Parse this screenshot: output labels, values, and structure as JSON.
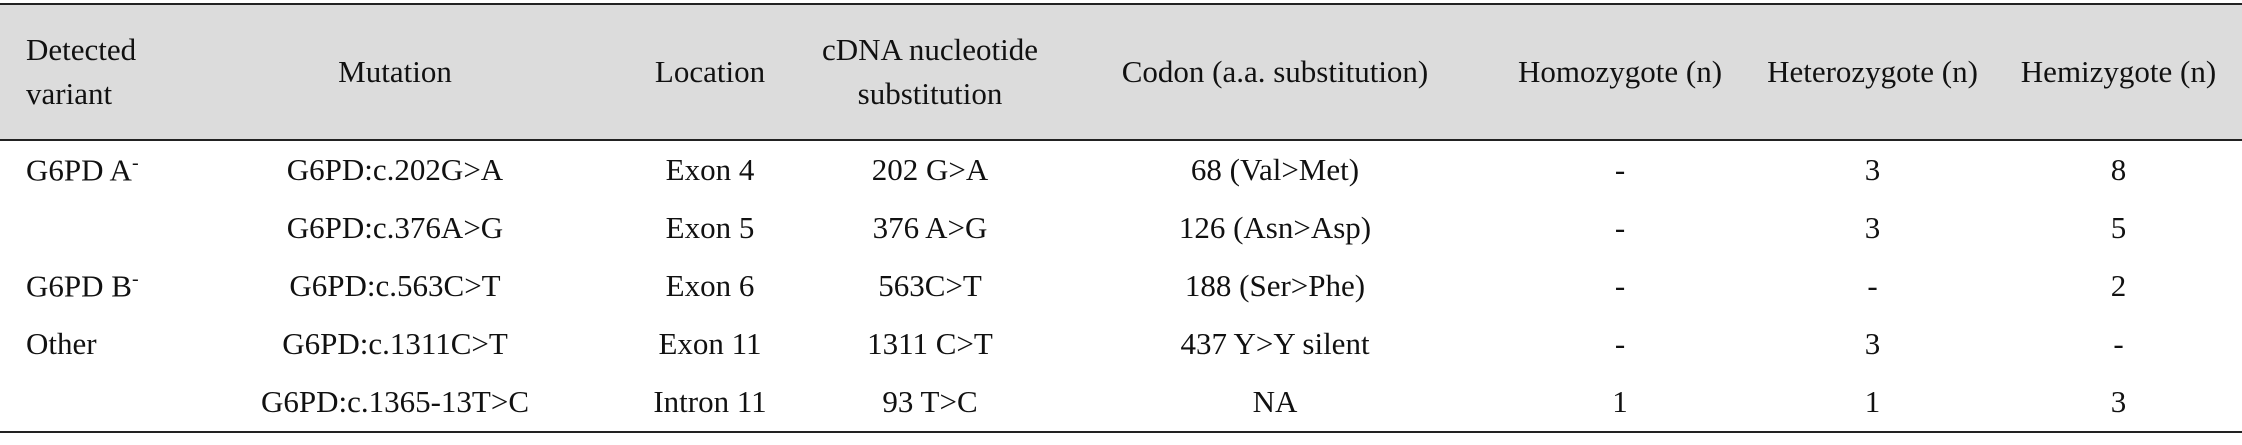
{
  "table": {
    "headers": [
      "Detected variant",
      "Mutation",
      "Location",
      "cDNA nucleotide substitution",
      "Codon (a.a. substitution)",
      "Homozygote (n)",
      "Heterozygote (n)",
      "Hemizygote (n)"
    ],
    "rows": [
      {
        "variant": {
          "text": "G6PD A",
          "sup": "-"
        },
        "cells": [
          "G6PD:c.202G>A",
          "Exon 4",
          "202 G>A",
          "68 (Val>Met)",
          "-",
          "3",
          "8"
        ]
      },
      {
        "cells": [
          "G6PD:c.376A>G",
          "Exon 5",
          "376 A>G",
          "126 (Asn>Asp)",
          "-",
          "3",
          "5"
        ]
      },
      {
        "variant": {
          "text": "G6PD B",
          "sup": "-"
        },
        "cells": [
          "G6PD:c.563C>T",
          "Exon 6",
          "563C>T",
          "188 (Ser>Phe)",
          "-",
          "-",
          "2"
        ]
      },
      {
        "variant": {
          "text": "Other"
        },
        "cells": [
          "G6PD:c.1311C>T",
          "Exon 11",
          "1311 C>T",
          "437 Y>Y silent",
          "-",
          "3",
          "-"
        ]
      },
      {
        "cells": [
          "G6PD:c.1365-13T>C",
          "Intron 11",
          "93 T>C",
          "NA",
          "1",
          "1",
          "3"
        ]
      }
    ]
  }
}
